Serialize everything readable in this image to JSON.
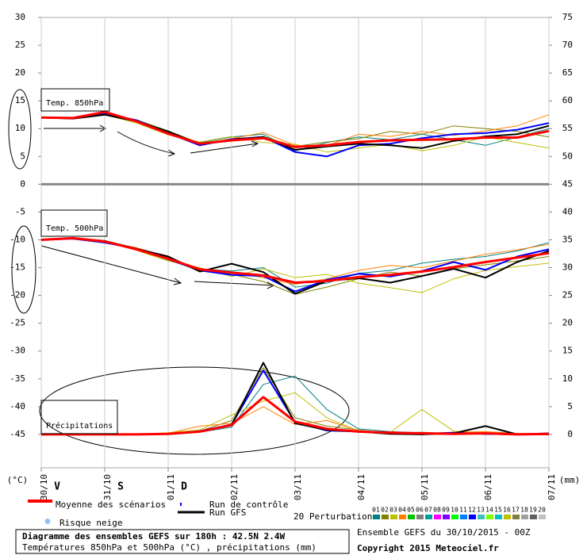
{
  "chart_data": {
    "type": "line",
    "title": "Diagramme des ensembles GEFS sur 180h : 42.5N 2.4W",
    "subtitle": "Températures 850hPa et 500hPa (°C) , précipitations (mm)",
    "run_info": "Ensemble GEFS du 30/10/2015 - 00Z",
    "copyright": "Copyright 2015 Meteociel.fr",
    "y_unit": "(°C)",
    "y2_unit": "(mm)",
    "panel_labels": {
      "t850": "Temp. 850hPa",
      "t500": "Temp. 500hPa",
      "precip": "Précipitations"
    },
    "series_axes": {
      "t850": "y",
      "t500": "y",
      "precip": "y2"
    },
    "day_letters": [
      "V",
      "S",
      "D"
    ],
    "snow_label": "Risque neige",
    "grid": true,
    "x": [
      0,
      0.5,
      1,
      1.5,
      2,
      2.5,
      3,
      3.5,
      4,
      4.5,
      5,
      5.5,
      6,
      6.5,
      7,
      7.5,
      8
    ],
    "xlim": [
      0,
      8
    ],
    "xticks": [
      {
        "value": 0,
        "label": "30/10"
      },
      {
        "value": 1,
        "label": "31/10"
      },
      {
        "value": 2,
        "label": "01/11"
      },
      {
        "value": 3,
        "label": "02/11"
      },
      {
        "value": 4,
        "label": "03/11"
      },
      {
        "value": 5,
        "label": "04/11"
      },
      {
        "value": 6,
        "label": "05/11"
      },
      {
        "value": 7,
        "label": "06/11"
      },
      {
        "value": 8,
        "label": "07/11"
      }
    ],
    "ylim": [
      -51,
      30
    ],
    "yticks": [
      30,
      25,
      20,
      15,
      10,
      5,
      0,
      -5,
      -10,
      -15,
      -20,
      -25,
      -30,
      -35,
      -40,
      -45
    ],
    "y2lim": [
      -6,
      75
    ],
    "y2ticks": [
      75,
      70,
      65,
      60,
      55,
      50,
      45,
      40,
      35,
      30,
      25,
      20,
      15,
      10,
      5,
      0
    ],
    "series": [
      {
        "name": "Moyenne des scénarios",
        "color": "#ff0000",
        "t850": [
          12,
          11.9,
          13,
          11.3,
          9.1,
          7.3,
          7.9,
          8.3,
          6.7,
          7,
          7.6,
          7.9,
          8,
          8.1,
          8.4,
          8.4,
          9.6
        ],
        "t500": [
          -10,
          -9.7,
          -10.3,
          -11.7,
          -13.4,
          -15.3,
          -15.9,
          -16.4,
          -17.7,
          -17.4,
          -16.7,
          -16.3,
          -15.7,
          -14.9,
          -14,
          -13.2,
          -12.4
        ],
        "precip": [
          0,
          0,
          0,
          0,
          0.1,
          0.5,
          1.7,
          6.7,
          2.3,
          1,
          0.5,
          0.3,
          0.2,
          0.1,
          0.2,
          0,
          0.1
        ]
      },
      {
        "name": "Run de contrôle",
        "color": "#0000ff",
        "t850": [
          12,
          11.9,
          12.8,
          11.5,
          9.2,
          7,
          8.1,
          8.5,
          5.8,
          5,
          7,
          7.3,
          8.3,
          9,
          9.2,
          9.8,
          11
        ],
        "t500": [
          -10,
          -9.8,
          -10.5,
          -11.6,
          -13.5,
          -15.5,
          -16.3,
          -16.5,
          -19.3,
          -17.2,
          -16.1,
          -16.6,
          -15.6,
          -14,
          -15.4,
          -13,
          -11.7
        ],
        "precip": [
          0,
          0,
          0,
          0,
          0.1,
          0.6,
          1.8,
          11.5,
          2.2,
          0.7,
          0.5,
          0.3,
          0.1,
          0.3,
          0.1,
          0,
          0.2
        ]
      },
      {
        "name": "Run GFS",
        "color": "#000000",
        "t850": [
          12,
          11.8,
          12.5,
          11.3,
          9.5,
          7.2,
          8,
          8.5,
          6.2,
          6.8,
          7.3,
          7,
          6.5,
          7.8,
          8.6,
          9,
          10.5
        ],
        "t500": [
          -10,
          -9.7,
          -10.2,
          -11.6,
          -13,
          -15.7,
          -14.3,
          -15.8,
          -19.7,
          -17.4,
          -16.9,
          -17.7,
          -16.5,
          -15.2,
          -16.8,
          -14,
          -12
        ],
        "precip": [
          0,
          0,
          0,
          0,
          0.1,
          0.5,
          1.7,
          12.9,
          2,
          0.8,
          0.5,
          0.1,
          0,
          0.2,
          1.5,
          0,
          0
        ]
      }
    ],
    "perturbations": {
      "label": "20 Perturbations",
      "members": [
        {
          "name": "01",
          "color": "#008080",
          "t850": [
            12,
            11.9,
            12.6,
            11.4,
            9.3,
            7.5,
            8.5,
            9,
            6,
            7.5,
            8.5,
            8,
            9,
            8,
            7,
            8.5,
            10
          ],
          "t500": [
            -10,
            -9.8,
            -10.4,
            -11.8,
            -13.6,
            -15.2,
            -15.6,
            -15,
            -18.5,
            -17.8,
            -16,
            -15.5,
            -14.2,
            -13.5,
            -13,
            -12,
            -10.5
          ],
          "precip": [
            0,
            0,
            0,
            0,
            0.2,
            0.4,
            1.3,
            9,
            10.5,
            4.5,
            1,
            0.5,
            0.3,
            0.2,
            0,
            0,
            0.1
          ]
        },
        {
          "name": "02",
          "color": "#808000",
          "t850": [
            12,
            12,
            12.7,
            11.6,
            9.6,
            7.4,
            8,
            8.6,
            6.8,
            7.6,
            8.2,
            9.5,
            9,
            10.5,
            10,
            9.5,
            8.5
          ],
          "t500": [
            -10,
            -9.6,
            -10.2,
            -11.5,
            -13.2,
            -15.6,
            -16.2,
            -17.5,
            -19.8,
            -18.5,
            -17,
            -15.8,
            -16.5,
            -15.2,
            -14.5,
            -13.8,
            -13
          ],
          "precip": [
            0,
            0,
            0,
            0,
            0.1,
            0.6,
            2.5,
            12,
            3,
            1.5,
            0.8,
            0.2,
            0.4,
            0.1,
            0.2,
            0,
            0
          ]
        },
        {
          "name": "03",
          "color": "#c0c000",
          "t850": [
            12,
            11.8,
            12.5,
            11,
            8.9,
            7.6,
            8.6,
            7.5,
            7.2,
            5.8,
            6.5,
            7.2,
            6,
            7,
            8.5,
            7.5,
            6.5
          ],
          "t500": [
            -10,
            -9.7,
            -10.3,
            -11.9,
            -13.8,
            -15,
            -16.6,
            -15.2,
            -16.8,
            -16.2,
            -17.8,
            -18.6,
            -19.5,
            -17,
            -15.5,
            -14.8,
            -14.2
          ],
          "precip": [
            0,
            0,
            0,
            0,
            0.3,
            0.8,
            3.5,
            6,
            7.5,
            3,
            0.6,
            0.4,
            4.5,
            0.6,
            0.2,
            0.1,
            0
          ]
        },
        {
          "name": "04",
          "color": "#ff8000",
          "t850": [
            12,
            11.9,
            12.6,
            11.5,
            9.4,
            7.3,
            8.2,
            9.3,
            7,
            6.9,
            9,
            8.6,
            9.5,
            8.8,
            9.6,
            10.5,
            12.5
          ],
          "t500": [
            -10,
            -9.8,
            -10.4,
            -11.4,
            -13.1,
            -15.4,
            -15.8,
            -16.8,
            -18,
            -17,
            -15.5,
            -14.6,
            -15,
            -13.8,
            -12.6,
            -11.8,
            -10.8
          ],
          "precip": [
            0,
            0,
            0,
            0,
            0.2,
            1.5,
            2,
            5,
            1.8,
            2.5,
            0.7,
            0.3,
            0.2,
            0.4,
            0.5,
            0.2,
            0.1
          ]
        },
        {
          "name": "05",
          "color": "#00c000"
        },
        {
          "name": "06",
          "color": "#808080"
        },
        {
          "name": "07",
          "color": "#00a0a0"
        },
        {
          "name": "08",
          "color": "#ff00ff"
        },
        {
          "name": "09",
          "color": "#8000ff"
        },
        {
          "name": "10",
          "color": "#00ff00"
        },
        {
          "name": "11",
          "color": "#0080ff"
        },
        {
          "name": "12",
          "color": "#0000ff"
        },
        {
          "name": "13",
          "color": "#40c0c0"
        },
        {
          "name": "14",
          "color": "#80ff00"
        },
        {
          "name": "15",
          "color": "#00c0c0"
        },
        {
          "name": "16",
          "color": "#c0c000"
        },
        {
          "name": "17",
          "color": "#808040"
        },
        {
          "name": "18",
          "color": "#a0a0a0"
        },
        {
          "name": "19",
          "color": "#606060"
        },
        {
          "name": "20",
          "color": "#c0c0c0"
        }
      ]
    }
  }
}
